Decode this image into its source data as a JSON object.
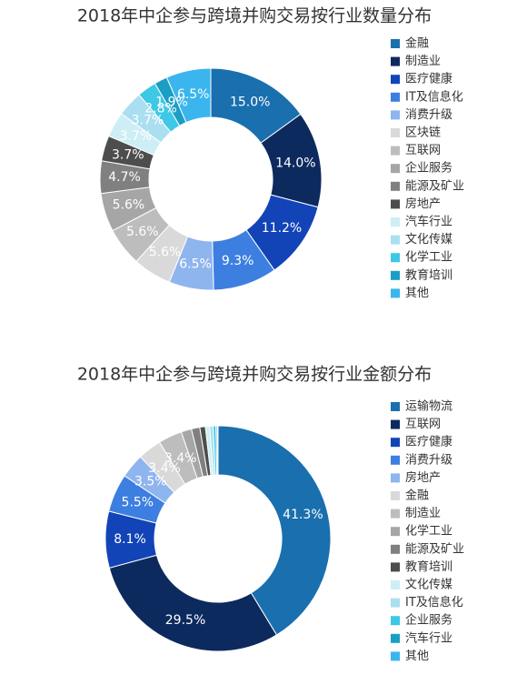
{
  "chart_data": [
    {
      "type": "pie",
      "title": "2018年中企参与跨境并购交易按行业数量分布",
      "categories": [
        "金融",
        "制造业",
        "医疗健康",
        "IT及信息化",
        "消费升级",
        "区块链",
        "互联网",
        "企业服务",
        "能源及矿业",
        "房地产",
        "汽车行业",
        "文化传媒",
        "化学工业",
        "教育培训",
        "其他"
      ],
      "values": [
        15.0,
        14.0,
        11.2,
        9.3,
        6.5,
        5.6,
        5.6,
        5.6,
        4.7,
        3.7,
        3.7,
        3.7,
        2.8,
        1.9,
        6.5
      ],
      "value_labels": [
        "15.0%",
        "14.0%",
        "11.2%",
        "9.3%",
        "6.5%",
        "5.6%",
        "5.6%",
        "5.6%",
        "4.7%",
        "3.7%",
        "3.7%",
        "3.7%",
        "2.8%",
        "1.9%",
        "6.5%"
      ],
      "colors": [
        "#1a6fae",
        "#0d2a5e",
        "#1244b8",
        "#3d7fe0",
        "#8fb5ef",
        "#d9d9d9",
        "#bdbdbd",
        "#a6a6a6",
        "#808080",
        "#4d4d4d",
        "#cdeef5",
        "#a9dff0",
        "#3ec8e6",
        "#1a9ec4",
        "#3bb5ee"
      ]
    },
    {
      "type": "pie",
      "title": "2018年中企参与跨境并购交易按行业金额分布",
      "categories": [
        "运输物流",
        "互联网",
        "医疗健康",
        "消费升级",
        "房地产",
        "金融",
        "制造业",
        "化学工业",
        "能源及矿业",
        "教育培训",
        "文化传媒",
        "IT及信息化",
        "企业服务",
        "汽车行业",
        "其他"
      ],
      "values": [
        41.3,
        29.5,
        8.1,
        5.5,
        3.5,
        3.4,
        3.4,
        1.5,
        1.2,
        0.8,
        0.6,
        0.5,
        0.4,
        0.2,
        0.1
      ],
      "value_labels": [
        "41.3%",
        "29.5%",
        "8.1%",
        "5.5%",
        "3.5%",
        "3.4%",
        "3.4%",
        null,
        null,
        null,
        null,
        null,
        null,
        null,
        null
      ],
      "colors": [
        "#1a6fae",
        "#0d2a5e",
        "#1244b8",
        "#3d7fe0",
        "#8fb5ef",
        "#d9d9d9",
        "#bdbdbd",
        "#a6a6a6",
        "#808080",
        "#4d4d4d",
        "#cdeef5",
        "#a9dff0",
        "#3ec8e6",
        "#1a9ec4",
        "#3bb5ee"
      ]
    }
  ]
}
